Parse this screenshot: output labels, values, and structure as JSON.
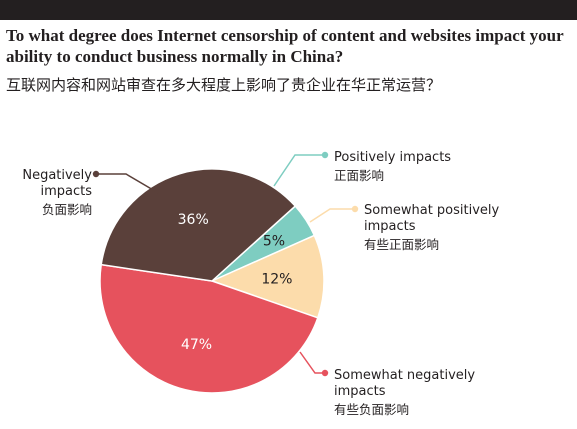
{
  "header": {
    "title_en": "To what degree does Internet censorship of content and websites impact your ability to conduct business normally in China?",
    "title_zh": "互联网内容和网站审查在多大程度上影响了贵企业在华正常运营？"
  },
  "chart_data": {
    "type": "pie",
    "title": "To what degree does Internet censorship of content and websites impact your ability to conduct business normally in China?",
    "subtitle": "互联网内容和网站审查在多大程度上影响了贵企业在华正常运营？",
    "slices": [
      {
        "label_en": "Positively impacts",
        "label_zh": "正面影响",
        "value": 5,
        "display": "5%",
        "color": "#7ecdc1"
      },
      {
        "label_en": "Somewhat positively impacts",
        "label_zh": "有些正面影响",
        "value": 12,
        "display": "12%",
        "color": "#fcdcab"
      },
      {
        "label_en": "Somewhat negatively impacts",
        "label_zh": "有些负面影响",
        "value": 47,
        "display": "47%",
        "color": "#e6525d"
      },
      {
        "label_en": "Negatively impacts",
        "label_zh": "负面影响",
        "value": 36,
        "display": "36%",
        "color": "#5a403a"
      }
    ]
  }
}
